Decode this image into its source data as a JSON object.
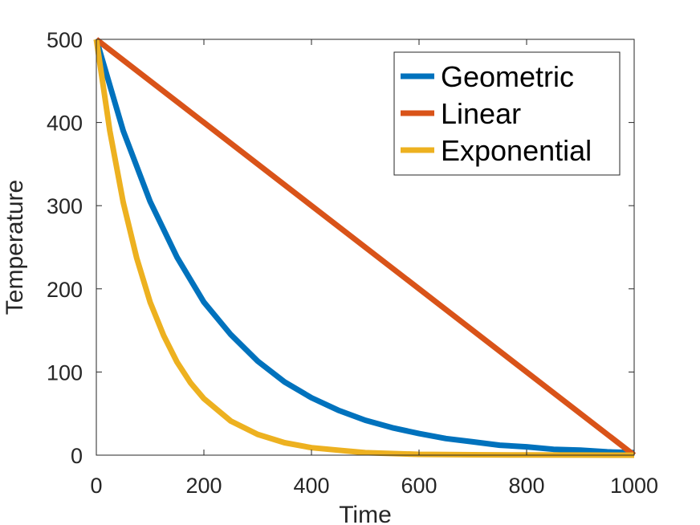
{
  "chart_data": {
    "type": "line",
    "title": "",
    "xlabel": "Time",
    "ylabel": "Temperature",
    "xlim": [
      0,
      1000
    ],
    "ylim": [
      0,
      500
    ],
    "xticks": [
      "0",
      "200",
      "400",
      "600",
      "800",
      "1000"
    ],
    "yticks": [
      "0",
      "100",
      "200",
      "300",
      "400",
      "500"
    ],
    "grid": false,
    "box": true,
    "legend_position": "top-right",
    "series": [
      {
        "name": "Geometric",
        "color": "#0072BD",
        "x": [
          0,
          50,
          100,
          150,
          200,
          250,
          300,
          350,
          400,
          450,
          500,
          550,
          600,
          650,
          700,
          750,
          800,
          850,
          900,
          950,
          1000
        ],
        "y": [
          500,
          390,
          305,
          238,
          184,
          145,
          113,
          88,
          69,
          54,
          42,
          33,
          26,
          20,
          16,
          12,
          10,
          7,
          6,
          4,
          3
        ]
      },
      {
        "name": "Linear",
        "color": "#D95319",
        "x": [
          0,
          1000
        ],
        "y": [
          500,
          0
        ]
      },
      {
        "name": "Exponential",
        "color": "#EDB120",
        "x": [
          0,
          25,
          50,
          75,
          100,
          125,
          150,
          175,
          200,
          250,
          300,
          350,
          400,
          450,
          500,
          600,
          700,
          800,
          900,
          1000
        ],
        "y": [
          500,
          390,
          304,
          237,
          184,
          144,
          112,
          87,
          68,
          41,
          25,
          15,
          9,
          6,
          3,
          1,
          0.5,
          0.2,
          0.1,
          0
        ]
      }
    ]
  }
}
